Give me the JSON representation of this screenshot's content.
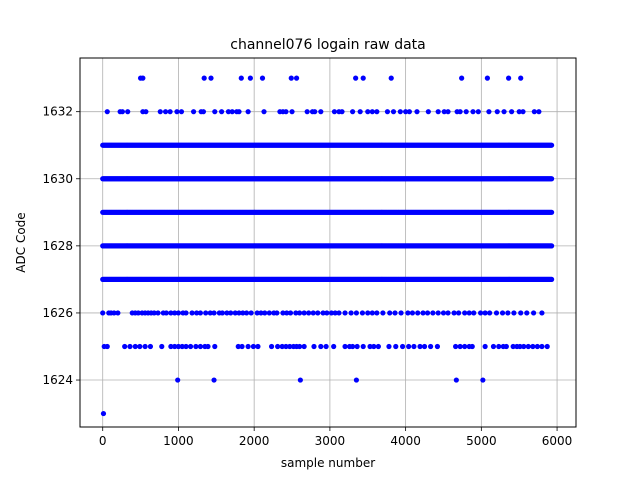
{
  "chart_data": {
    "type": "scatter",
    "title": "channel076 logain raw data",
    "xlabel": "sample number",
    "ylabel": "ADC Code",
    "xlim": [
      -300,
      6250
    ],
    "ylim": [
      1622.6,
      1633.6
    ],
    "xticks": [
      0,
      1000,
      2000,
      3000,
      4000,
      5000,
      6000
    ],
    "yticks": [
      1624,
      1626,
      1628,
      1630,
      1632
    ],
    "grid": true,
    "marker_color": "#0000ff",
    "n_samples": 5940,
    "dense_levels": [
      1627,
      1628,
      1629,
      1630,
      1631
    ],
    "sparse_levels": {
      "1632": [
        60,
        230,
        260,
        330,
        530,
        570,
        760,
        830,
        890,
        980,
        1040,
        1200,
        1300,
        1330,
        1480,
        1570,
        1660,
        1710,
        1770,
        1800,
        1920,
        2130,
        2340,
        2380,
        2420,
        2500,
        2700,
        2770,
        2800,
        2880,
        3060,
        3120,
        3160,
        3300,
        3400,
        3500,
        3560,
        3620,
        3760,
        3840,
        3930,
        4000,
        4050,
        4150,
        4300,
        4430,
        4510,
        4560,
        4680,
        4720,
        4800,
        4890,
        4960,
        5100,
        5210,
        5300,
        5400,
        5500,
        5550,
        5700,
        5760
      ],
      "1633": [
        500,
        530,
        1340,
        1430,
        1830,
        1950,
        2110,
        2490,
        2560,
        3340,
        3440,
        3810,
        4740,
        5080,
        5360,
        5520
      ],
      "1626": [
        0,
        80,
        110,
        150,
        200,
        390,
        430,
        470,
        520,
        560,
        600,
        640,
        680,
        730,
        800,
        840,
        900,
        950,
        1000,
        1060,
        1100,
        1180,
        1240,
        1290,
        1360,
        1420,
        1470,
        1540,
        1580,
        1640,
        1690,
        1750,
        1800,
        1850,
        1900,
        1960,
        2040,
        2090,
        2140,
        2200,
        2260,
        2300,
        2380,
        2430,
        2480,
        2550,
        2600,
        2660,
        2720,
        2780,
        2840,
        2910,
        2960,
        3020,
        3070,
        3120,
        3200,
        3280,
        3350,
        3430,
        3500,
        3560,
        3620,
        3700,
        3790,
        3860,
        3940,
        4030,
        4090,
        4160,
        4230,
        4290,
        4360,
        4430,
        4500,
        4560,
        4640,
        4700,
        4780,
        4840,
        4900,
        4990,
        5050,
        5110,
        5200,
        5280,
        5350,
        5430,
        5520,
        5600,
        5690,
        5800
      ],
      "1625": [
        20,
        60,
        290,
        360,
        430,
        490,
        560,
        630,
        780,
        900,
        950,
        1000,
        1050,
        1100,
        1160,
        1230,
        1290,
        1350,
        1390,
        1480,
        1790,
        1840,
        1920,
        1990,
        2050,
        2230,
        2310,
        2370,
        2420,
        2470,
        2520,
        2560,
        2600,
        2660,
        2790,
        2880,
        2950,
        3050,
        3200,
        3260,
        3300,
        3360,
        3440,
        3530,
        3580,
        3640,
        3780,
        3870,
        3960,
        4040,
        4110,
        4190,
        4250,
        4330,
        4420,
        4660,
        4720,
        4780,
        4840,
        4880,
        5050,
        5160,
        5230,
        5290,
        5330,
        5420,
        5470,
        5510,
        5560,
        5620,
        5680,
        5740,
        5800,
        5870
      ],
      "1624": [
        990,
        1470,
        2610,
        3350,
        4670,
        5020
      ],
      "1623": [
        10
      ]
    }
  }
}
